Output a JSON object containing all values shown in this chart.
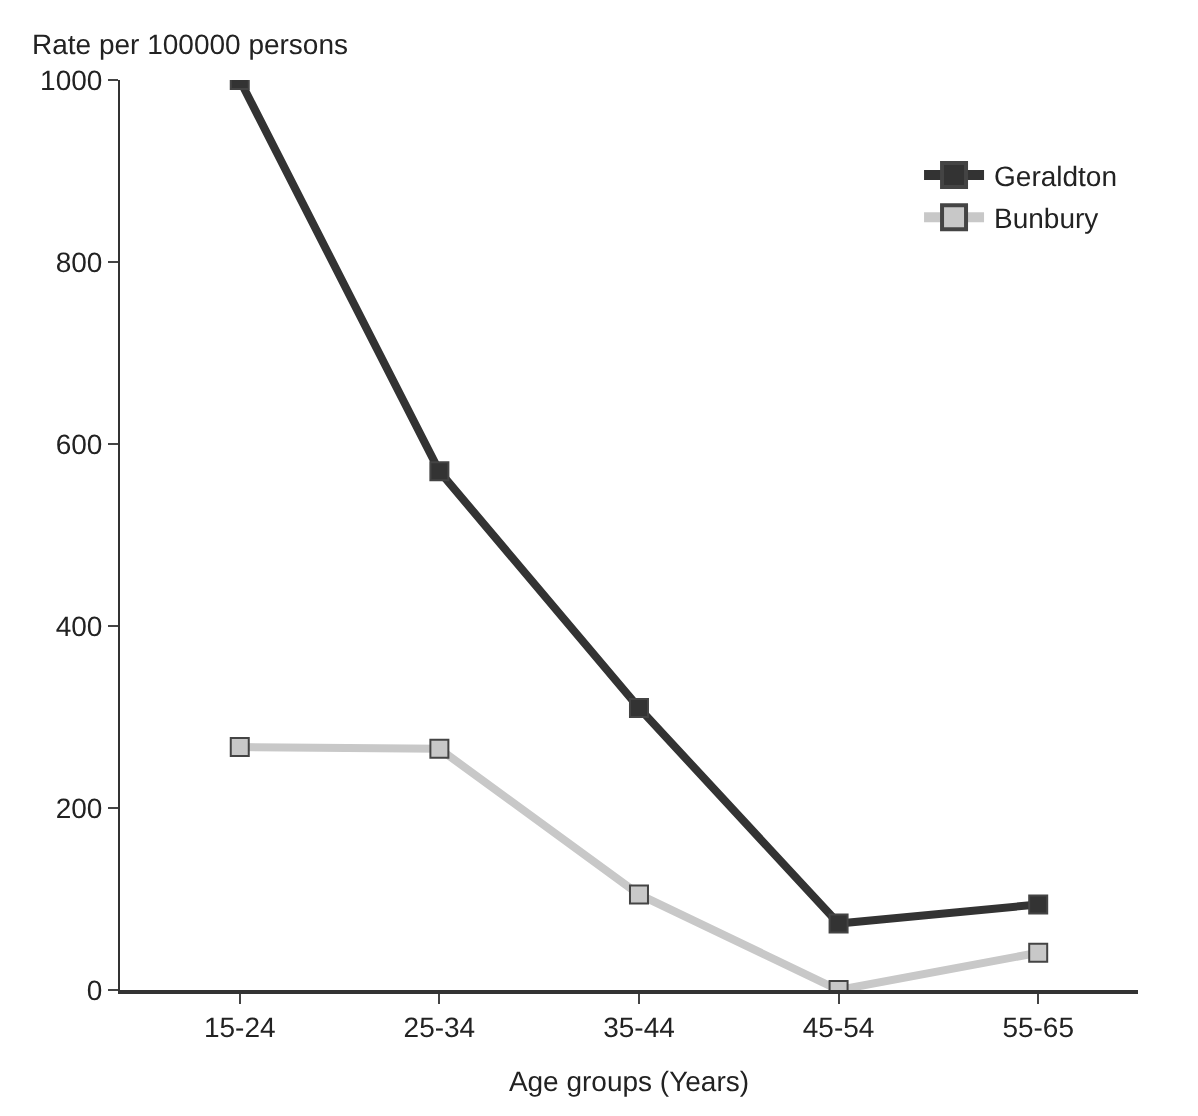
{
  "chart_data": {
    "type": "line",
    "xlabel": "Age groups (Years)",
    "ylabel": "Rate per 100000 persons",
    "categories": [
      "15-24",
      "25-34",
      "35-44",
      "45-54",
      "55-65"
    ],
    "series": [
      {
        "name": "Geraldton",
        "color": "#333333",
        "values": [
          1000,
          570,
          310,
          73,
          94
        ]
      },
      {
        "name": "Bunbury",
        "color": "#c8c8c8",
        "values": [
          267,
          265,
          105,
          0,
          41
        ]
      }
    ],
    "ylim": [
      0,
      1000
    ],
    "yticks": [
      0,
      200,
      400,
      600,
      800,
      1000
    ],
    "legend": "top right",
    "marker": "square",
    "line_style": "solid"
  }
}
